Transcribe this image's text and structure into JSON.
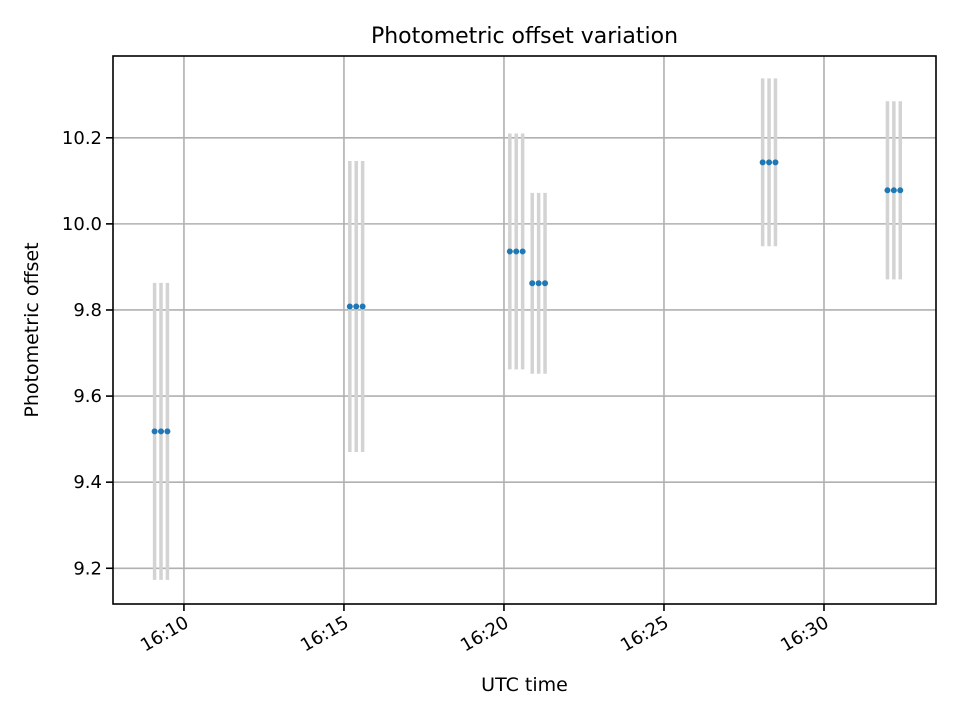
{
  "chart_data": {
    "type": "scatter",
    "title": "Photometric offset variation",
    "xlabel": "UTC time",
    "ylabel": "Photometric offset",
    "x_ticks": [
      "16:10",
      "16:15",
      "16:20",
      "16:25",
      "16:30"
    ],
    "y_ticks": [
      "9.2",
      "9.4",
      "9.6",
      "9.8",
      "10.0",
      "10.2"
    ],
    "xlim": [
      "16:07:47",
      "16:33:30"
    ],
    "ylim": [
      9.117,
      10.39
    ],
    "grid": true,
    "marker_color": "#1f77b4",
    "errorbar_color": "#d3d3d3",
    "points": [
      {
        "x": "16:09:05",
        "y": 9.518,
        "yerr": 0.345
      },
      {
        "x": "16:09:17",
        "y": 9.518,
        "yerr": 0.345
      },
      {
        "x": "16:09:29",
        "y": 9.518,
        "yerr": 0.345
      },
      {
        "x": "16:15:11",
        "y": 9.808,
        "yerr": 0.338
      },
      {
        "x": "16:15:23",
        "y": 9.808,
        "yerr": 0.338
      },
      {
        "x": "16:15:35",
        "y": 9.808,
        "yerr": 0.338
      },
      {
        "x": "16:20:11",
        "y": 9.936,
        "yerr": 0.274
      },
      {
        "x": "16:20:23",
        "y": 9.936,
        "yerr": 0.274
      },
      {
        "x": "16:20:35",
        "y": 9.936,
        "yerr": 0.274
      },
      {
        "x": "16:20:53",
        "y": 9.862,
        "yerr": 0.21
      },
      {
        "x": "16:21:05",
        "y": 9.862,
        "yerr": 0.21
      },
      {
        "x": "16:21:17",
        "y": 9.862,
        "yerr": 0.21
      },
      {
        "x": "16:28:05",
        "y": 10.143,
        "yerr": 0.195
      },
      {
        "x": "16:28:17",
        "y": 10.143,
        "yerr": 0.195
      },
      {
        "x": "16:28:29",
        "y": 10.143,
        "yerr": 0.195
      },
      {
        "x": "16:31:59",
        "y": 10.078,
        "yerr": 0.207
      },
      {
        "x": "16:32:11",
        "y": 10.078,
        "yerr": 0.207
      },
      {
        "x": "16:32:23",
        "y": 10.078,
        "yerr": 0.207
      }
    ]
  }
}
